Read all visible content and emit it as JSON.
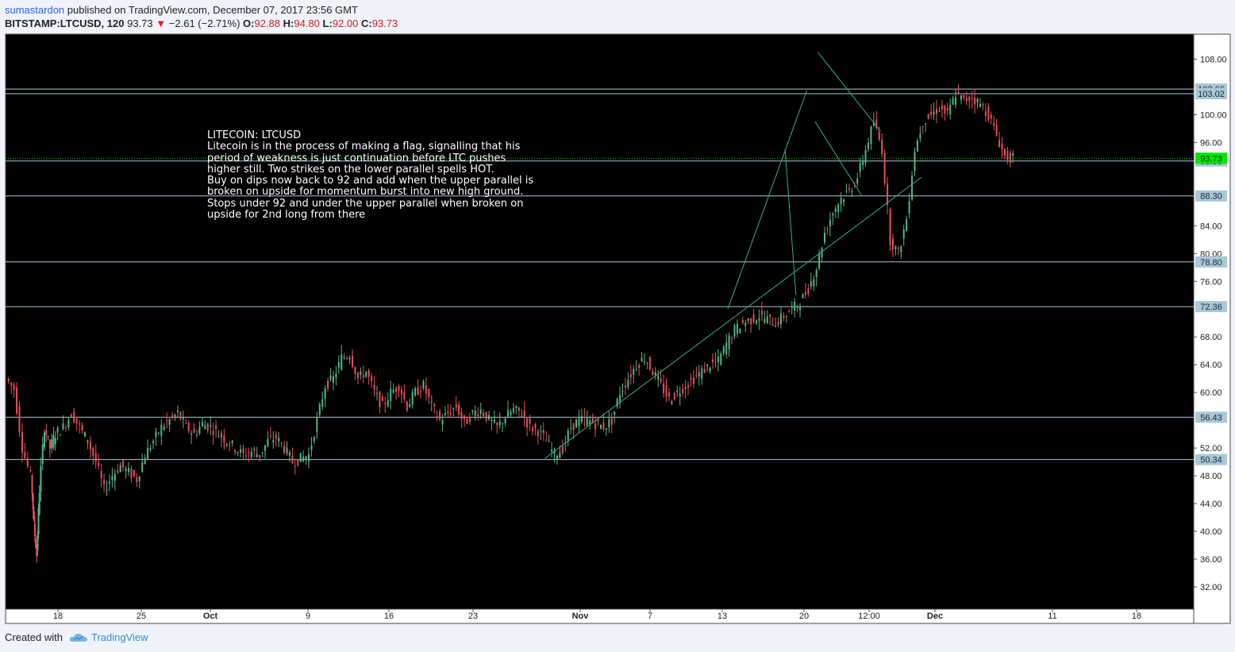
{
  "header": {
    "author": "sumastardon",
    "published_text": "published on TradingView.com, December 07, 2017 23:56 GMT"
  },
  "ticker": {
    "symbol": "BITSTAMP:LTCUSD, 120",
    "last": "93.73",
    "arrow": "▼",
    "change": "−2.61 (−2.71%)",
    "o_label": "O:",
    "o_value": "92.88",
    "h_label": "H:",
    "h_value": "94.80",
    "l_label": "L:",
    "l_value": "92.00",
    "c_label": "C:",
    "c_value": "93.73"
  },
  "annotation": {
    "title": "LITECOIN: LTCUSD",
    "body": "Litecoin is in the process of making a flag, signalling that his\nperiod of weakness is just continuation before LTC pushes\nhigher still. Two strikes on the lower parallel spells HOT.\nBuy on dips now back to 92 and add when the upper parallel is\nbroken on upside for momentum burst into new high ground.\nStops under 92 and under the upper parallel when broken on\nupside for 2nd long from there"
  },
  "footer": {
    "created_with": "Created with",
    "brand": "TradingView"
  },
  "colors": {
    "background": "#000000",
    "up": "#53b987",
    "down": "#eb4d5c",
    "level_line": "#a9c7d6",
    "trend_line": "#2eb08a",
    "last_price": "#00e600",
    "price_label_bg": "#a9c7d6"
  },
  "chart_data": {
    "type": "candlestick",
    "symbol": "BITSTAMP:LTCUSD",
    "timeframe": "120",
    "y_ticks": [
      "108.00",
      "100.00",
      "96.00",
      "84.00",
      "80.00",
      "76.00",
      "68.00",
      "64.00",
      "60.00",
      "52.00",
      "48.00",
      "44.00",
      "40.00",
      "36.00",
      "32.00"
    ],
    "x_ticks": [
      "18",
      "25",
      "Oct",
      "9",
      "16",
      "23",
      "Nov",
      "7",
      "13",
      "20",
      "12:00",
      "Dec",
      "11",
      "18"
    ],
    "ylim": [
      28.8,
      111.6
    ],
    "horizontal_levels": [
      {
        "value": 103.7,
        "label": "103.66"
      },
      {
        "value": 103.02,
        "label": "103.02"
      },
      {
        "value": 93.33,
        "label": "93.33"
      },
      {
        "value": 88.3,
        "label": "88.30"
      },
      {
        "value": 78.8,
        "label": "78.80"
      },
      {
        "value": 72.36,
        "label": "72.36"
      },
      {
        "value": 56.43,
        "label": "56.43"
      },
      {
        "value": 50.34,
        "label": "50.34"
      }
    ],
    "last_price": {
      "value": 93.73,
      "label": "93.73"
    },
    "path_points": [
      [
        0,
        62
      ],
      [
        3,
        60.5
      ],
      [
        6,
        52
      ],
      [
        9,
        48
      ],
      [
        10,
        41
      ],
      [
        11,
        36.5
      ],
      [
        12,
        46
      ],
      [
        14,
        55
      ],
      [
        16,
        52
      ],
      [
        18,
        54
      ],
      [
        21,
        55
      ],
      [
        24,
        57
      ],
      [
        27,
        55
      ],
      [
        30,
        53
      ],
      [
        33,
        50
      ],
      [
        36,
        46
      ],
      [
        39,
        48
      ],
      [
        42,
        49.5
      ],
      [
        45,
        48.5
      ],
      [
        48,
        47.5
      ],
      [
        51,
        51
      ],
      [
        54,
        53
      ],
      [
        57,
        55
      ],
      [
        60,
        56
      ],
      [
        63,
        57
      ],
      [
        66,
        55
      ],
      [
        69,
        54
      ],
      [
        72,
        55.5
      ],
      [
        75,
        55
      ],
      [
        78,
        54
      ],
      [
        81,
        53
      ],
      [
        84,
        52
      ],
      [
        87,
        51
      ],
      [
        90,
        51.5
      ],
      [
        93,
        51
      ],
      [
        96,
        53
      ],
      [
        99,
        53.5
      ],
      [
        102,
        52
      ],
      [
        105,
        50
      ],
      [
        108,
        50.5
      ],
      [
        111,
        51
      ],
      [
        114,
        56
      ],
      [
        117,
        61
      ],
      [
        120,
        62
      ],
      [
        123,
        65
      ],
      [
        126,
        65.5
      ],
      [
        129,
        62
      ],
      [
        132,
        63
      ],
      [
        135,
        60
      ],
      [
        138,
        58
      ],
      [
        141,
        60
      ],
      [
        144,
        61
      ],
      [
        147,
        58
      ],
      [
        150,
        60
      ],
      [
        153,
        61
      ],
      [
        156,
        58
      ],
      [
        159,
        56
      ],
      [
        162,
        57
      ],
      [
        165,
        58
      ],
      [
        168,
        55.5
      ],
      [
        171,
        57
      ],
      [
        174,
        57.5
      ],
      [
        177,
        56
      ],
      [
        180,
        55
      ],
      [
        183,
        56.5
      ],
      [
        186,
        57.5
      ],
      [
        189,
        57
      ],
      [
        192,
        55
      ],
      [
        195,
        54.5
      ],
      [
        198,
        53
      ],
      [
        201,
        51
      ],
      [
        204,
        52
      ],
      [
        207,
        55
      ],
      [
        210,
        56
      ],
      [
        213,
        56
      ],
      [
        216,
        55.5
      ],
      [
        219,
        55
      ],
      [
        222,
        56
      ],
      [
        225,
        60
      ],
      [
        228,
        62
      ],
      [
        231,
        64
      ],
      [
        234,
        65
      ],
      [
        237,
        63
      ],
      [
        240,
        61
      ],
      [
        243,
        59
      ],
      [
        246,
        60
      ],
      [
        249,
        61
      ],
      [
        252,
        62
      ],
      [
        255,
        63
      ],
      [
        258,
        64
      ],
      [
        261,
        64.5
      ],
      [
        264,
        67
      ],
      [
        267,
        69
      ],
      [
        270,
        70
      ],
      [
        273,
        70.5
      ],
      [
        276,
        71
      ],
      [
        279,
        70.5
      ],
      [
        282,
        70
      ],
      [
        285,
        71
      ],
      [
        288,
        72
      ],
      [
        291,
        73
      ],
      [
        294,
        75
      ],
      [
        297,
        78
      ],
      [
        300,
        83
      ],
      [
        303,
        86
      ],
      [
        306,
        88
      ],
      [
        309,
        89
      ],
      [
        312,
        91
      ],
      [
        315,
        95
      ],
      [
        318,
        99
      ],
      [
        321,
        95
      ],
      [
        324,
        82
      ],
      [
        327,
        80
      ],
      [
        330,
        85
      ],
      [
        333,
        95
      ],
      [
        336,
        99
      ],
      [
        339,
        100
      ],
      [
        342,
        101
      ],
      [
        345,
        100
      ],
      [
        348,
        103
      ],
      [
        351,
        102
      ],
      [
        354,
        102.5
      ],
      [
        357,
        101.5
      ],
      [
        360,
        100
      ],
      [
        363,
        97
      ],
      [
        366,
        94
      ],
      [
        369,
        93.73
      ]
    ],
    "path_x_domain": [
      0,
      369
    ],
    "trend_lines": [
      {
        "x1": 197,
        "y1": 50.5,
        "x2": 335,
        "y2": 91
      },
      {
        "x1": 264,
        "y1": 72,
        "x2": 293,
        "y2": 103.5
      },
      {
        "x1": 285,
        "y1": 95,
        "x2": 289,
        "y2": 74
      },
      {
        "x1": 296,
        "y1": 99,
        "x2": 313,
        "y2": 88.4
      },
      {
        "x1": 297,
        "y1": 109,
        "x2": 320,
        "y2": 97.6
      }
    ]
  }
}
